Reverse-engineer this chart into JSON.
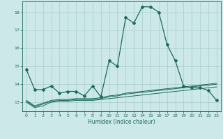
{
  "xlabel": "Humidex (Indice chaleur)",
  "bg_color": "#cce8e8",
  "grid_color": "#aacccc",
  "line_color": "#1a6b5a",
  "xlim": [
    -0.5,
    23.5
  ],
  "ylim": [
    12.5,
    18.6
  ],
  "yticks": [
    13,
    14,
    15,
    16,
    17,
    18
  ],
  "xticks": [
    0,
    1,
    2,
    3,
    4,
    5,
    6,
    7,
    8,
    9,
    10,
    11,
    12,
    13,
    14,
    15,
    16,
    17,
    18,
    19,
    20,
    21,
    22,
    23
  ],
  "main_line_x": [
    0,
    1,
    2,
    3,
    4,
    5,
    6,
    7,
    8,
    9,
    10,
    11,
    12,
    13,
    14,
    15,
    16,
    17,
    18,
    19,
    20,
    21,
    22,
    23
  ],
  "main_line_y": [
    14.8,
    13.7,
    13.7,
    13.9,
    13.5,
    13.6,
    13.6,
    13.35,
    13.9,
    13.3,
    15.3,
    15.0,
    17.7,
    17.4,
    18.3,
    18.3,
    18.0,
    16.2,
    15.3,
    13.9,
    13.8,
    13.8,
    13.65,
    13.1
  ],
  "line2_x": [
    0,
    1,
    2,
    3,
    4,
    5,
    6,
    7,
    8,
    9,
    10,
    11,
    12,
    13,
    14,
    15,
    16,
    17,
    18,
    19,
    20,
    21,
    22,
    23
  ],
  "line2_y": [
    13.0,
    12.7,
    12.8,
    13.0,
    13.05,
    13.05,
    13.1,
    13.1,
    13.1,
    13.15,
    13.2,
    13.25,
    13.3,
    13.35,
    13.4,
    13.45,
    13.5,
    13.55,
    13.6,
    13.65,
    13.7,
    13.75,
    13.8,
    13.85
  ],
  "line3_x": [
    0,
    1,
    2,
    3,
    4,
    5,
    6,
    7,
    8,
    9,
    10,
    11,
    12,
    13,
    14,
    15,
    16,
    17,
    18,
    19,
    20,
    21,
    22,
    23
  ],
  "line3_y": [
    13.05,
    12.75,
    12.9,
    13.05,
    13.1,
    13.1,
    13.15,
    13.15,
    13.15,
    13.2,
    13.3,
    13.35,
    13.45,
    13.5,
    13.55,
    13.6,
    13.65,
    13.7,
    13.75,
    13.8,
    13.85,
    13.9,
    13.95,
    14.0
  ],
  "line4_x": [
    0,
    1,
    2,
    3,
    4,
    5,
    6,
    7,
    8,
    9,
    10,
    11,
    12,
    13,
    14,
    15,
    16,
    17,
    18,
    19,
    20,
    21,
    22,
    23
  ],
  "line4_y": [
    13.1,
    12.8,
    12.95,
    13.1,
    13.15,
    13.15,
    13.2,
    13.2,
    13.2,
    13.25,
    13.35,
    13.4,
    13.5,
    13.55,
    13.6,
    13.65,
    13.7,
    13.75,
    13.8,
    13.85,
    13.9,
    13.95,
    14.0,
    14.05
  ]
}
